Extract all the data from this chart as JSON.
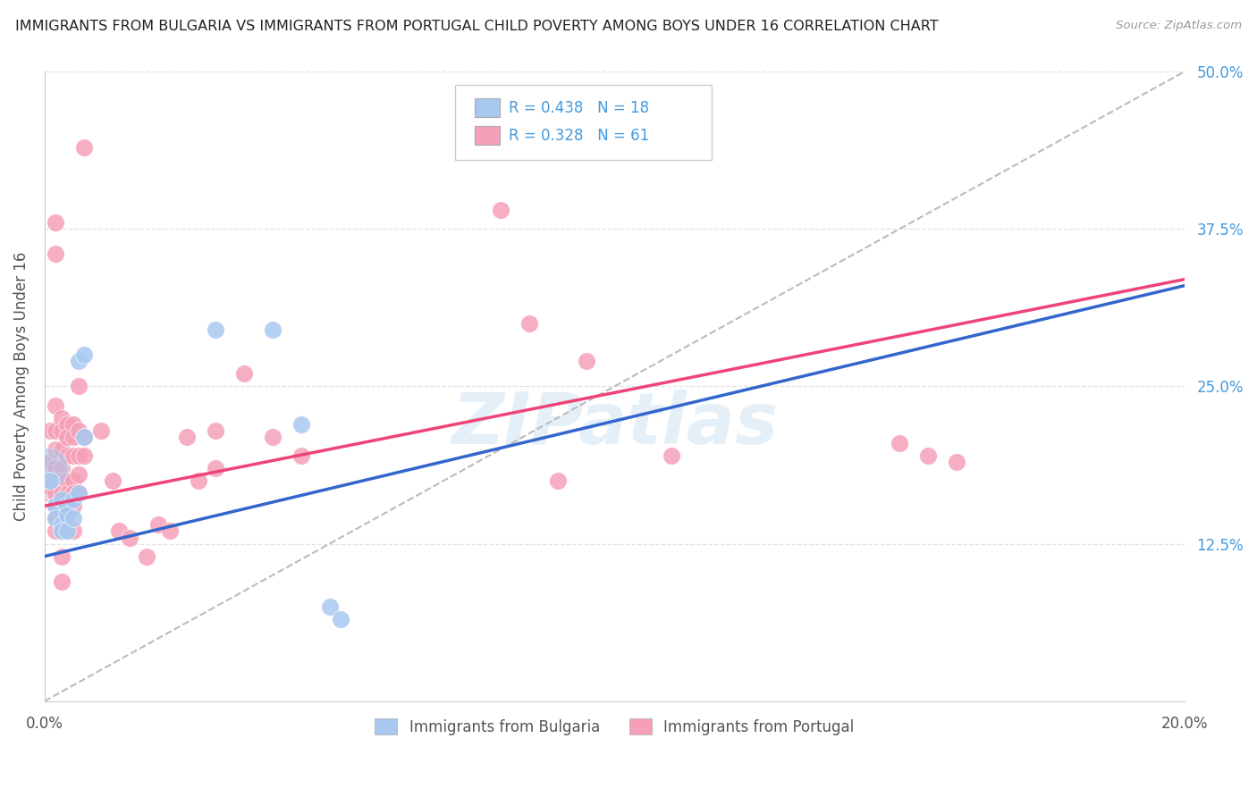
{
  "title": "IMMIGRANTS FROM BULGARIA VS IMMIGRANTS FROM PORTUGAL CHILD POVERTY AMONG BOYS UNDER 16 CORRELATION CHART",
  "source": "Source: ZipAtlas.com",
  "ylabel": "Child Poverty Among Boys Under 16",
  "watermark": "ZIPatlas",
  "xlim": [
    0.0,
    0.2
  ],
  "ylim": [
    0.0,
    0.5
  ],
  "ytick_values": [
    0.125,
    0.25,
    0.375,
    0.5
  ],
  "ytick_labels": [
    "12.5%",
    "25.0%",
    "37.5%",
    "50.0%"
  ],
  "grid_color": "#e0e0e0",
  "background_color": "#ffffff",
  "bulgaria_color": "#a8c8f0",
  "portugal_color": "#f5a0b8",
  "legend_text_color": "#4499dd",
  "trend_line_color_bulgaria": "#3366cc",
  "trend_line_color_portugal": "#ee4477",
  "dashed_line_color": "#bbbbbb",
  "bulgaria_scatter": [
    [
      0.001,
      0.175
    ],
    [
      0.002,
      0.155
    ],
    [
      0.002,
      0.145
    ],
    [
      0.003,
      0.16
    ],
    [
      0.003,
      0.14
    ],
    [
      0.003,
      0.135
    ],
    [
      0.004,
      0.155
    ],
    [
      0.004,
      0.148
    ],
    [
      0.004,
      0.135
    ],
    [
      0.005,
      0.16
    ],
    [
      0.005,
      0.145
    ],
    [
      0.006,
      0.27
    ],
    [
      0.006,
      0.165
    ],
    [
      0.007,
      0.275
    ],
    [
      0.007,
      0.21
    ],
    [
      0.03,
      0.295
    ],
    [
      0.04,
      0.295
    ],
    [
      0.045,
      0.22
    ],
    [
      0.05,
      0.075
    ],
    [
      0.052,
      0.065
    ]
  ],
  "portugal_scatter": [
    [
      0.001,
      0.215
    ],
    [
      0.001,
      0.19
    ],
    [
      0.001,
      0.17
    ],
    [
      0.002,
      0.38
    ],
    [
      0.002,
      0.355
    ],
    [
      0.002,
      0.235
    ],
    [
      0.002,
      0.215
    ],
    [
      0.002,
      0.2
    ],
    [
      0.002,
      0.185
    ],
    [
      0.002,
      0.175
    ],
    [
      0.002,
      0.165
    ],
    [
      0.002,
      0.155
    ],
    [
      0.002,
      0.145
    ],
    [
      0.002,
      0.135
    ],
    [
      0.003,
      0.225
    ],
    [
      0.003,
      0.215
    ],
    [
      0.003,
      0.2
    ],
    [
      0.003,
      0.185
    ],
    [
      0.003,
      0.175
    ],
    [
      0.003,
      0.165
    ],
    [
      0.003,
      0.155
    ],
    [
      0.003,
      0.145
    ],
    [
      0.003,
      0.135
    ],
    [
      0.003,
      0.115
    ],
    [
      0.003,
      0.095
    ],
    [
      0.004,
      0.22
    ],
    [
      0.004,
      0.21
    ],
    [
      0.004,
      0.195
    ],
    [
      0.004,
      0.175
    ],
    [
      0.004,
      0.165
    ],
    [
      0.004,
      0.155
    ],
    [
      0.005,
      0.22
    ],
    [
      0.005,
      0.21
    ],
    [
      0.005,
      0.195
    ],
    [
      0.005,
      0.175
    ],
    [
      0.005,
      0.165
    ],
    [
      0.005,
      0.155
    ],
    [
      0.005,
      0.135
    ],
    [
      0.006,
      0.25
    ],
    [
      0.006,
      0.215
    ],
    [
      0.006,
      0.195
    ],
    [
      0.006,
      0.18
    ],
    [
      0.006,
      0.165
    ],
    [
      0.007,
      0.44
    ],
    [
      0.007,
      0.21
    ],
    [
      0.007,
      0.195
    ],
    [
      0.01,
      0.215
    ],
    [
      0.012,
      0.175
    ],
    [
      0.013,
      0.135
    ],
    [
      0.015,
      0.13
    ],
    [
      0.018,
      0.115
    ],
    [
      0.02,
      0.14
    ],
    [
      0.022,
      0.135
    ],
    [
      0.025,
      0.21
    ],
    [
      0.027,
      0.175
    ],
    [
      0.03,
      0.215
    ],
    [
      0.03,
      0.185
    ],
    [
      0.035,
      0.26
    ],
    [
      0.04,
      0.21
    ],
    [
      0.045,
      0.195
    ],
    [
      0.08,
      0.39
    ],
    [
      0.085,
      0.3
    ],
    [
      0.09,
      0.175
    ],
    [
      0.095,
      0.27
    ],
    [
      0.11,
      0.195
    ],
    [
      0.15,
      0.205
    ],
    [
      0.155,
      0.195
    ],
    [
      0.16,
      0.19
    ]
  ],
  "large_point_bulgaria": [
    0.0005,
    0.185
  ],
  "large_point_portugal": [
    0.0005,
    0.175
  ],
  "bulgaria_trend": [
    0.0,
    0.115,
    0.2,
    0.33
  ],
  "portugal_trend": [
    0.0,
    0.155,
    0.2,
    0.335
  ]
}
